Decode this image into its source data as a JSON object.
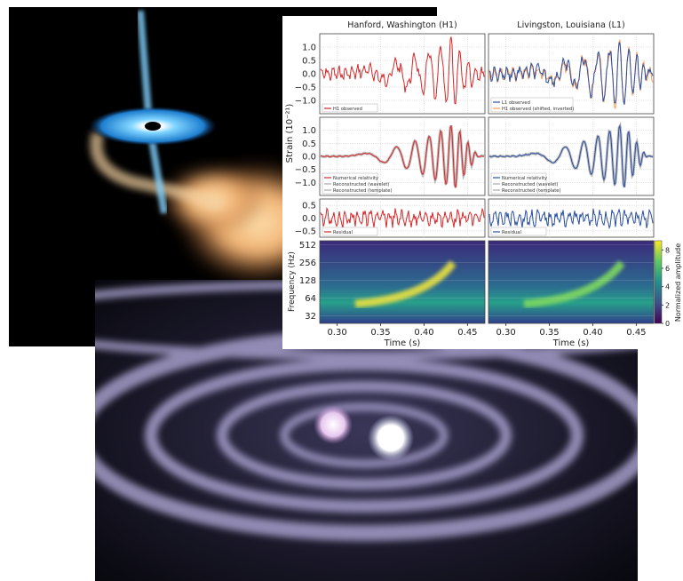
{
  "figure": {
    "columns": [
      {
        "title": "Hanford, Washington (H1)",
        "legends": [
          [
            "H1 observed"
          ],
          [
            "Numerical relativity",
            "Reconstructed (wavelet)",
            "Reconstructed (template)"
          ],
          [
            "Residual"
          ]
        ]
      },
      {
        "title": "Livingston, Louisiana (L1)",
        "legends": [
          [
            "L1 observed",
            "H1 observed (shifted, inverted)"
          ],
          [
            "Numerical relativity",
            "Reconstructed (wavelet)",
            "Reconstructed (template)"
          ],
          [
            "Residual"
          ]
        ]
      }
    ],
    "strain_label": "Strain (10⁻²¹)",
    "frequency_label": "Frequency (Hz)",
    "time_label": "Time (s)",
    "colorbar_label": "Normalized amplitude",
    "xlim": [
      0.28,
      0.47
    ],
    "xticks": [
      {
        "value": 0.3,
        "label": "0.30"
      },
      {
        "value": 0.35,
        "label": "0.35"
      },
      {
        "value": 0.4,
        "label": "0.40"
      },
      {
        "value": 0.45,
        "label": "0.45"
      }
    ],
    "rows": [
      {
        "ylim": [
          -1.5,
          1.5
        ],
        "yticks": [
          {
            "value": 1,
            "label": "1.0"
          },
          {
            "value": 0.5,
            "label": "0.5"
          },
          {
            "value": 0,
            "label": "0.0"
          },
          {
            "value": -0.5,
            "label": "−0.5"
          },
          {
            "value": -1,
            "label": "−1.0"
          }
        ]
      },
      {
        "ylim": [
          -1.5,
          1.5
        ],
        "yticks": [
          {
            "value": 1,
            "label": "1.0"
          },
          {
            "value": 0.5,
            "label": "0.5"
          },
          {
            "value": 0,
            "label": "0.0"
          },
          {
            "value": -0.5,
            "label": "−0.5"
          },
          {
            "value": -1,
            "label": "−1.0"
          }
        ]
      },
      {
        "ylim": [
          -0.75,
          0.75
        ],
        "yticks": [
          0.5,
          {
            "value": 0,
            "label": "0.0"
          },
          {
            "value": -0.5,
            "label": "−0.5"
          }
        ]
      }
    ],
    "spectrogram": {
      "ylim": [
        24,
        600
      ],
      "yticks": [
        512,
        256,
        128,
        64,
        32
      ],
      "log": true
    },
    "colorbar": {
      "ylim": [
        0,
        9
      ],
      "yticks": [
        0,
        2,
        4,
        6,
        8
      ]
    }
  }
}
